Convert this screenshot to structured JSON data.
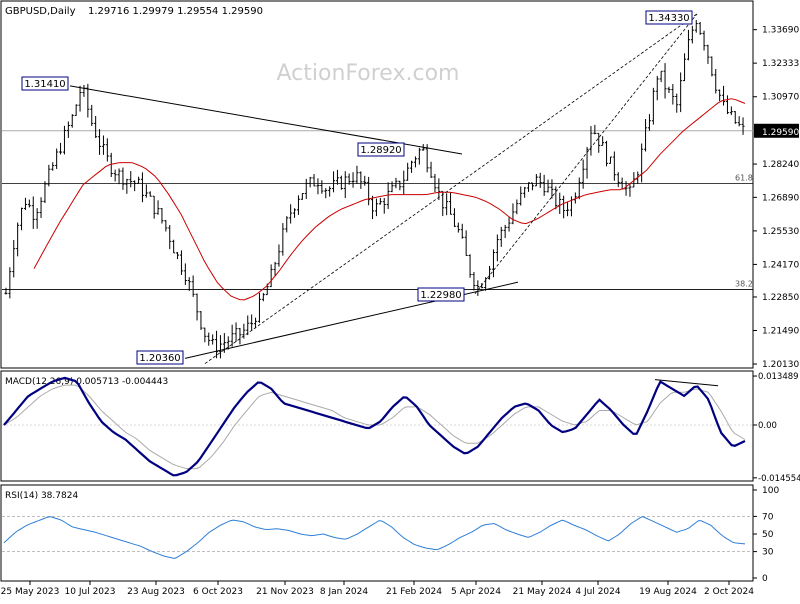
{
  "header": {
    "symbol": "GBPUSD,Daily",
    "ohlc": "1.29716 1.29979 1.29554 1.29590",
    "watermark": "ActionForex.com"
  },
  "chart_data": [
    {
      "type": "candlestick",
      "title": "GBPUSD,Daily",
      "ylim": [
        1.2,
        1.3433
      ],
      "y_ticks": [
        "1.33690",
        "1.32333",
        "1.30970",
        "1.28240",
        "1.26890",
        "1.25530",
        "1.24170",
        "1.22850",
        "1.21490",
        "1.20130"
      ],
      "current_price": "1.29590",
      "price_shape": [
        1.23,
        1.255,
        1.268,
        1.262,
        1.272,
        1.282,
        1.292,
        1.301,
        1.314,
        1.3,
        1.29,
        1.282,
        1.278,
        1.276,
        1.274,
        1.269,
        1.263,
        1.256,
        1.246,
        1.238,
        1.226,
        1.214,
        1.208,
        1.21,
        1.212,
        1.214,
        1.218,
        1.226,
        1.236,
        1.25,
        1.262,
        1.27,
        1.274,
        1.276,
        1.272,
        1.274,
        1.276,
        1.278,
        1.272,
        1.264,
        1.268,
        1.272,
        1.276,
        1.284,
        1.289,
        1.28,
        1.268,
        1.262,
        1.254,
        1.24,
        1.232,
        1.24,
        1.252,
        1.258,
        1.266,
        1.272,
        1.276,
        1.274,
        1.268,
        1.264,
        1.268,
        1.282,
        1.298,
        1.29,
        1.282,
        1.276,
        1.27,
        1.282,
        1.3,
        1.32,
        1.312,
        1.306,
        1.328,
        1.342,
        1.331,
        1.316,
        1.305,
        1.3,
        1.296
      ],
      "ma_shape": [
        1.24,
        1.249,
        1.258,
        1.266,
        1.274,
        1.278,
        1.282,
        1.283,
        1.283,
        1.281,
        1.277,
        1.27,
        1.262,
        1.252,
        1.242,
        1.234,
        1.229,
        1.227,
        1.229,
        1.233,
        1.239,
        1.246,
        1.252,
        1.257,
        1.261,
        1.264,
        1.266,
        1.268,
        1.269,
        1.27,
        1.27,
        1.27,
        1.27,
        1.271,
        1.271,
        1.27,
        1.269,
        1.267,
        1.264,
        1.26,
        1.258,
        1.26,
        1.263,
        1.266,
        1.268,
        1.27,
        1.271,
        1.272,
        1.272,
        1.276,
        1.28,
        1.286,
        1.291,
        1.296,
        1.3,
        1.304,
        1.308,
        1.309,
        1.307
      ],
      "annotations": [
        {
          "label": "1.31410",
          "x": "10 Jul 2023",
          "y": 1.3141
        },
        {
          "label": "1.20360",
          "x": "6 Oct 2023",
          "y": 1.2036
        },
        {
          "label": "1.28920",
          "x": "7 Mar 2024",
          "y": 1.2892
        },
        {
          "label": "1.22980",
          "x": "22 Apr 2024",
          "y": 1.2298
        },
        {
          "label": "1.34330",
          "x": "26 Sep 2024",
          "y": 1.3433
        }
      ],
      "fib_levels": [
        {
          "label": "61.8",
          "y": 1.2745
        },
        {
          "label": "38.2",
          "y": 1.2315
        }
      ],
      "horizontal_level": 1.2959
    },
    {
      "type": "line",
      "title": "MACD(12,26,9) 0.005713 -0.004443",
      "y_ticks": [
        "0.013489",
        "0.00",
        "-0.014554"
      ],
      "ylim": [
        -0.0146,
        0.0135
      ],
      "macd_shape": [
        0.0,
        0.004,
        0.008,
        0.01,
        0.012,
        0.013,
        0.012,
        0.006,
        0.001,
        -0.002,
        -0.004,
        -0.007,
        -0.01,
        -0.012,
        -0.014,
        -0.013,
        -0.01,
        -0.005,
        0.0,
        0.005,
        0.009,
        0.012,
        0.01,
        0.006,
        0.005,
        0.004,
        0.003,
        0.002,
        0.001,
        0.0,
        -0.001,
        0.001,
        0.005,
        0.008,
        0.005,
        0.0,
        -0.003,
        -0.006,
        -0.008,
        -0.006,
        -0.002,
        0.002,
        0.005,
        0.006,
        0.004,
        0.0,
        -0.002,
        -0.001,
        0.003,
        0.007,
        0.004,
        0.0,
        -0.003,
        0.004,
        0.012,
        0.01,
        0.008,
        0.011,
        0.007,
        -0.002,
        -0.006,
        -0.0044
      ],
      "signal_shape": [
        0.0,
        0.002,
        0.005,
        0.008,
        0.01,
        0.011,
        0.011,
        0.008,
        0.004,
        0.001,
        -0.002,
        -0.004,
        -0.007,
        -0.009,
        -0.011,
        -0.012,
        -0.012,
        -0.009,
        -0.005,
        0.0,
        0.004,
        0.008,
        0.009,
        0.008,
        0.007,
        0.006,
        0.005,
        0.004,
        0.002,
        0.001,
        0.0,
        0.0,
        0.002,
        0.005,
        0.005,
        0.003,
        0.0,
        -0.003,
        -0.005,
        -0.005,
        -0.003,
        0.0,
        0.003,
        0.005,
        0.005,
        0.003,
        0.001,
        0.0,
        0.001,
        0.004,
        0.004,
        0.002,
        0.0,
        0.001,
        0.006,
        0.009,
        0.009,
        0.01,
        0.009,
        0.004,
        -0.002,
        -0.004
      ]
    },
    {
      "type": "line",
      "title": "RSI(14) 38.7824",
      "y_ticks": [
        "100",
        "70",
        "50",
        "30",
        "0"
      ],
      "ylim": [
        0,
        100
      ],
      "rsi_shape": [
        40,
        52,
        60,
        65,
        70,
        66,
        58,
        55,
        52,
        48,
        44,
        40,
        36,
        30,
        25,
        22,
        30,
        40,
        52,
        60,
        66,
        64,
        58,
        55,
        56,
        54,
        50,
        48,
        50,
        46,
        44,
        50,
        58,
        66,
        58,
        46,
        38,
        34,
        32,
        38,
        46,
        52,
        60,
        62,
        55,
        50,
        46,
        52,
        60,
        66,
        60,
        55,
        48,
        42,
        50,
        62,
        70,
        64,
        58,
        52,
        56,
        66,
        60,
        48,
        40,
        38.78
      ]
    }
  ],
  "x_axis": [
    "25 May 2023",
    "10 Jul 2023",
    "23 Aug 2023",
    "6 Oct 2023",
    "21 Nov 2023",
    "8 Jan 2024",
    "21 Feb 2024",
    "5 Apr 2024",
    "21 May 2024",
    "4 Jul 2024",
    "19 Aug 2024",
    "2 Oct 2024"
  ],
  "colors": {
    "candle": "#000000",
    "moving_average": "#cc0000",
    "macd": "#000080",
    "signal": "#aaaaaa",
    "rsi": "#2f7fd6",
    "label_border": "#000080",
    "current_price_box": "#000000"
  }
}
